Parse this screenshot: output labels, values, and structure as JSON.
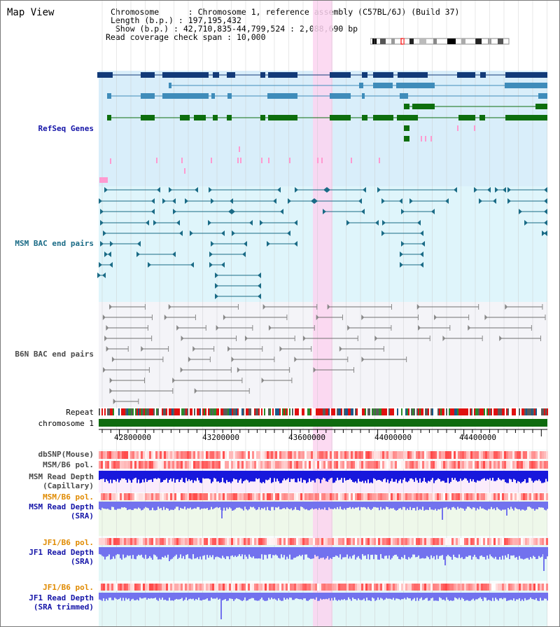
{
  "window": {
    "title": "Map View"
  },
  "info": {
    "chromosome_label": "Chromosome",
    "chromosome_value": "Chromosome 1, reference assembly (C57BL/6J) (Build 37)",
    "length_label": "Length (b.p.)",
    "length_value": "197,195,432",
    "show_label": "Show (b.p.)",
    "show_value": "42,710,835-44,799,524 : 2,088,690 bp",
    "coverage_label": "Read coverage check span",
    "coverage_value": "10,000"
  },
  "tracks": {
    "refseq": "RefSeq Genes",
    "msm_bac": "MSM BAC end pairs",
    "b6n_bac": "B6N BAC end pairs",
    "repeat": "Repeat",
    "chromosome": "chromosome 1",
    "dbsnp": "dbSNP(Mouse)",
    "msm_b6_pol_1": "MSM/B6 pol.",
    "msm_depth_cap_1": "MSM Read Depth",
    "msm_depth_cap_2": "(Capillary)",
    "msm_b6_pol_2": "MSM/B6 pol.",
    "msm_depth_sra_1": "MSM Read Depth",
    "msm_depth_sra_2": "(SRA)",
    "jf1_b6_pol_1": "JF1/B6 pol.",
    "jf1_depth_sra_1": "JF1 Read Depth",
    "jf1_depth_sra_2": "(SRA)",
    "jf1_b6_pol_2": "JF1/B6 pol.",
    "jf1_depth_trim_1": "JF1 Read Depth",
    "jf1_depth_trim_2": "(SRA trimmed)"
  },
  "axis": {
    "ticks": [
      "42800000",
      "43200000",
      "43600000",
      "44000000",
      "44400000"
    ]
  },
  "colors": {
    "refseq_bg": "#d9eefa",
    "msm_bg": "#dff5fb",
    "b6n_bg": "#f4f4f8",
    "highlight": "#fbd3f0",
    "refseq_dark": "#123a78",
    "refseq_mid": "#3f8cba",
    "refseq_green": "#0d6e0d",
    "msm_line": "#1a6b86",
    "b6n_line": "#707070",
    "chromosome_bar": "#0e6b0e",
    "depth_dark": "#1818dc",
    "depth_light": "#7272ee"
  }
}
